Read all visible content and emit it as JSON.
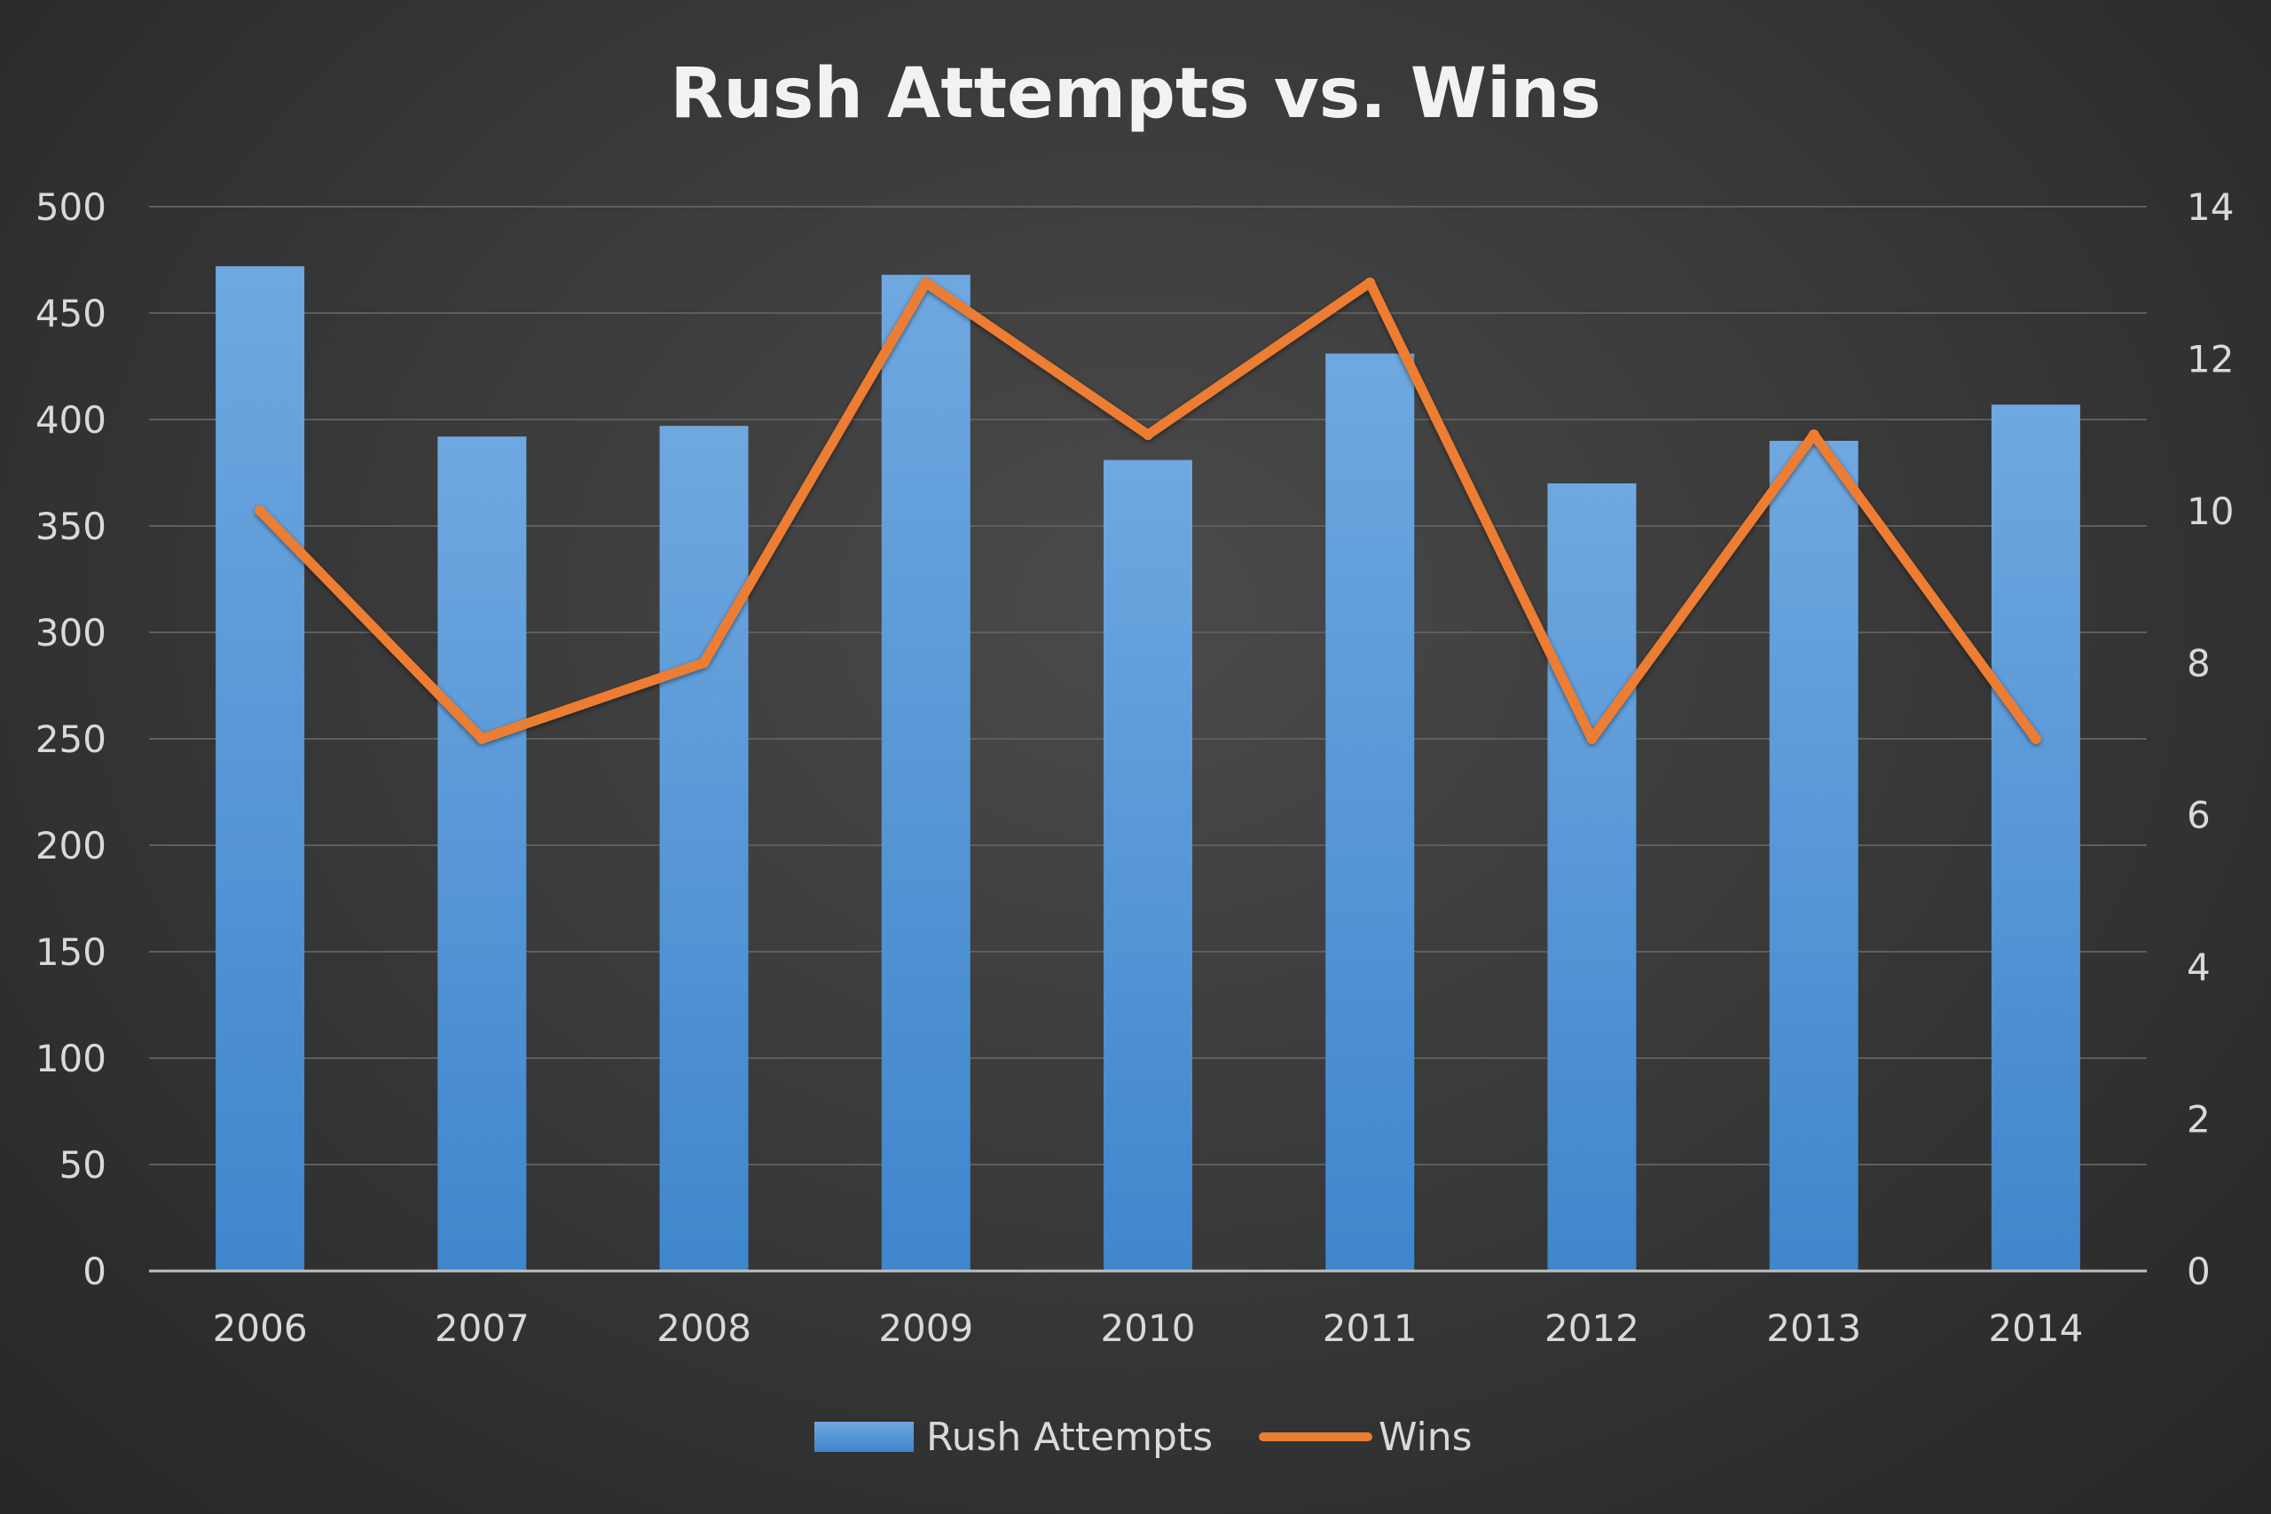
{
  "chart_data": {
    "type": "bar",
    "title": "Rush Attempts vs. Wins",
    "categories": [
      "2006",
      "2007",
      "2008",
      "2009",
      "2010",
      "2011",
      "2012",
      "2013",
      "2014"
    ],
    "series": [
      {
        "name": "Rush Attempts",
        "type": "bar",
        "axis": "left",
        "color": "#5b9bd5",
        "values": [
          472,
          392,
          397,
          468,
          381,
          431,
          370,
          390,
          407
        ]
      },
      {
        "name": "Wins",
        "type": "line",
        "axis": "right",
        "color": "#ed7d31",
        "values": [
          10,
          7,
          8,
          13,
          11,
          13,
          7,
          11,
          7
        ]
      }
    ],
    "y_left": {
      "range": [
        0,
        500
      ],
      "ticks": [
        "0",
        "50",
        "100",
        "150",
        "200",
        "250",
        "300",
        "350",
        "400",
        "450",
        "500"
      ]
    },
    "y_right": {
      "range": [
        0,
        14
      ],
      "ticks": [
        "0",
        "2",
        "4",
        "6",
        "8",
        "10",
        "12",
        "14"
      ]
    },
    "grid": true,
    "legend": "bottom"
  }
}
